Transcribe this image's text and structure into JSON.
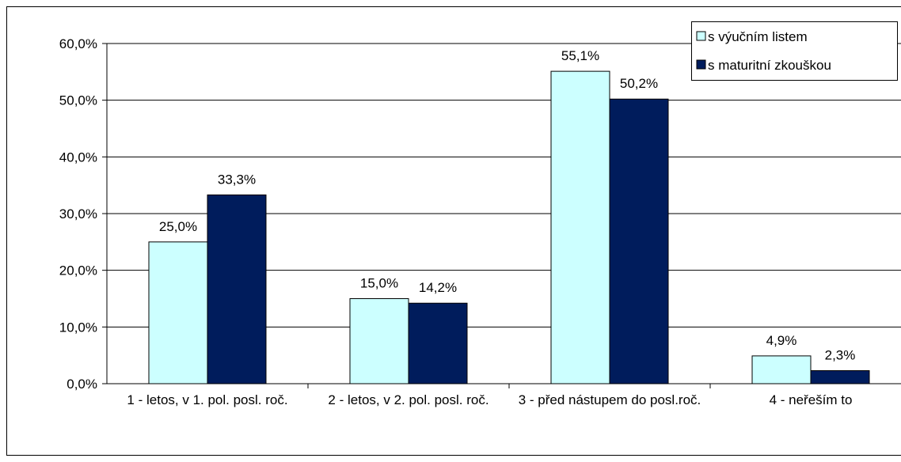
{
  "chart_data": {
    "type": "bar",
    "categories": [
      "1 - letos, v 1. pol. posl. roč.",
      "2 - letos, v 2. pol. posl. roč.",
      "3 - před nástupem do posl.roč.",
      "4 - neřeším to"
    ],
    "series": [
      {
        "name": "s výučním listem",
        "color": "#ccffff",
        "values": [
          25.0,
          15.0,
          55.1,
          4.9
        ],
        "value_labels": [
          "25,0%",
          "15,0%",
          "55,1%",
          "4,9%"
        ]
      },
      {
        "name": "s maturitní zkouškou",
        "color": "#001c5c",
        "values": [
          33.3,
          14.2,
          50.2,
          2.3
        ],
        "value_labels": [
          "33,3%",
          "14,2%",
          "50,2%",
          "2,3%"
        ]
      }
    ],
    "ylim": [
      0,
      60
    ],
    "yticks": [
      {
        "value": 0,
        "label": "0,0%"
      },
      {
        "value": 10,
        "label": "10,0%"
      },
      {
        "value": 20,
        "label": "20,0%"
      },
      {
        "value": 30,
        "label": "30,0%"
      },
      {
        "value": 40,
        "label": "40,0%"
      },
      {
        "value": 50,
        "label": "50,0%"
      },
      {
        "value": 60,
        "label": "60,0%"
      }
    ],
    "grid": true,
    "legend": "top-right"
  }
}
